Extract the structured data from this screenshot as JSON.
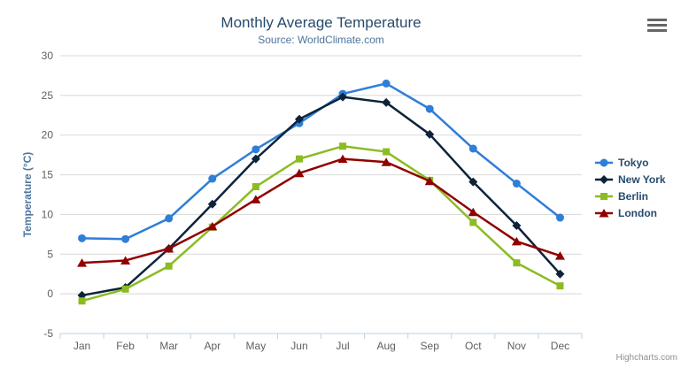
{
  "credits": {
    "label": "Highcharts.com"
  },
  "context_menu": {
    "icon": "hamburger-menu",
    "color": "#666666"
  },
  "palette": {
    "title_color": "#274b6d",
    "subtitle_color": "#4d759e",
    "axis_label_color": "#606060",
    "axis_title_color": "#4d759e",
    "gridline_color": "#d8d8d8",
    "axis_line_color": "#c0d0e0",
    "legend_text_color": "#274b6d",
    "credits_color": "#909090"
  },
  "chart_data": {
    "type": "line",
    "title": "Monthly Average Temperature",
    "subtitle": "Source: WorldClimate.com",
    "xlabel": "",
    "ylabel": "Temperature (°C)",
    "categories": [
      "Jan",
      "Feb",
      "Mar",
      "Apr",
      "May",
      "Jun",
      "Jul",
      "Aug",
      "Sep",
      "Oct",
      "Nov",
      "Dec"
    ],
    "yticks": [
      -5,
      0,
      5,
      10,
      15,
      20,
      25,
      30
    ],
    "ylim": [
      -5,
      30
    ],
    "grid": true,
    "legend_position": "right",
    "series": [
      {
        "name": "Tokyo",
        "color": "#2f7ed8",
        "marker": "circle",
        "values": [
          7.0,
          6.9,
          9.5,
          14.5,
          18.2,
          21.5,
          25.2,
          26.5,
          23.3,
          18.3,
          13.9,
          9.6
        ]
      },
      {
        "name": "New York",
        "color": "#0d233a",
        "marker": "diamond",
        "values": [
          -0.2,
          0.8,
          5.7,
          11.3,
          17.0,
          22.0,
          24.8,
          24.1,
          20.1,
          14.1,
          8.6,
          2.5
        ]
      },
      {
        "name": "Berlin",
        "color": "#8bbc21",
        "marker": "square",
        "values": [
          -0.9,
          0.6,
          3.5,
          8.4,
          13.5,
          17.0,
          18.6,
          17.9,
          14.3,
          9.0,
          3.9,
          1.0
        ]
      },
      {
        "name": "London",
        "color": "#910000",
        "marker": "triangle",
        "values": [
          3.9,
          4.2,
          5.7,
          8.5,
          11.9,
          15.2,
          17.0,
          16.6,
          14.2,
          10.3,
          6.6,
          4.8
        ]
      }
    ]
  }
}
